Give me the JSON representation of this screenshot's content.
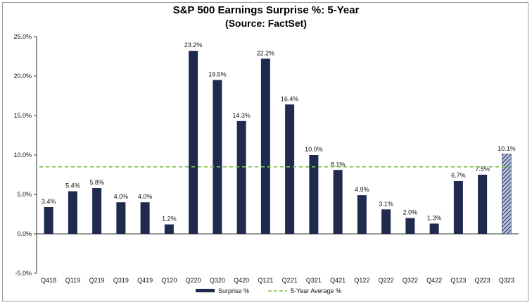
{
  "chart_data": {
    "type": "bar",
    "title": "S&P 500 Earnings Surprise %: 5-Year",
    "subtitle": "(Source: FactSet)",
    "categories": [
      "Q418",
      "Q119",
      "Q219",
      "Q319",
      "Q419",
      "Q120",
      "Q220",
      "Q320",
      "Q420",
      "Q121",
      "Q221",
      "Q321",
      "Q421",
      "Q122",
      "Q222",
      "Q322",
      "Q422",
      "Q123",
      "Q223",
      "Q323"
    ],
    "series": [
      {
        "name": "Surprise %",
        "values": [
          3.4,
          5.4,
          5.8,
          4.0,
          4.0,
          1.2,
          23.2,
          19.5,
          14.3,
          22.2,
          16.4,
          10.0,
          8.1,
          4.9,
          3.1,
          2.0,
          1.3,
          6.7,
          7.5,
          10.1
        ],
        "labels": [
          "3.4%",
          "5.4%",
          "5.8%",
          "4.0%",
          "4.0%",
          "1.2%",
          "23.2%",
          "19.5%",
          "14.3%",
          "22.2%",
          "16.4%",
          "10.0%",
          "8.1%",
          "4.9%",
          "3.1%",
          "2.0%",
          "1.3%",
          "6.7%",
          "7.5%",
          "10.1%"
        ],
        "color": "#1f2a4f",
        "last_bar_hatched": true
      },
      {
        "name": "5-Year Average %",
        "type": "line",
        "value": 8.5,
        "color": "#7dc242",
        "style": "dashed"
      }
    ],
    "ylim": [
      -5.0,
      25.0
    ],
    "yticks": [
      -5.0,
      0.0,
      5.0,
      10.0,
      15.0,
      20.0,
      25.0
    ],
    "ytick_labels": [
      "-5.0%",
      "0.0%",
      "5.0%",
      "10.0%",
      "15.0%",
      "20.0%",
      "25.0%"
    ],
    "xlabel": "",
    "ylabel": "",
    "grid": false,
    "legend_position": "bottom-center"
  }
}
